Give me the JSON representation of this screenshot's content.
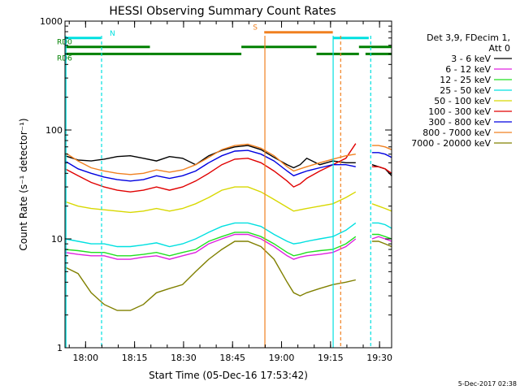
{
  "chart_data": {
    "type": "line",
    "title": "HESSI Observing Summary Count Rates",
    "xlabel": "Start Time (05-Dec-16 17:53:42)",
    "ylabel": "Count Rate (s⁻¹ detector⁻¹)",
    "yscale": "log",
    "ylim": [
      1,
      1000
    ],
    "xlim_minutes_after_start": [
      0,
      100
    ],
    "x_start_time": "17:53:42",
    "x_tick_labels": [
      "18:00",
      "18:15",
      "18:30",
      "18:45",
      "19:00",
      "19:15",
      "19:30"
    ],
    "y_tick_labels": [
      "1",
      "10",
      "100",
      "1000"
    ],
    "footer": "5-Dec-2017 02:38",
    "legend": {
      "placement": "right",
      "header": [
        "Det 3,9, FDecim 1,",
        "Att 0"
      ],
      "entries": [
        {
          "label": "3 - 6 keV",
          "color": "#000000"
        },
        {
          "label": "6 - 12 keV",
          "color": "#e020e0"
        },
        {
          "label": "12 - 25 keV",
          "color": "#20e020"
        },
        {
          "label": "25 - 50 keV",
          "color": "#00e0e0"
        },
        {
          "label": "50 - 100 keV",
          "color": "#d8d800"
        },
        {
          "label": "100 - 300 keV",
          "color": "#e00000"
        },
        {
          "label": "300 - 800 keV",
          "color": "#0000e0"
        },
        {
          "label": "800 - 7000 keV",
          "color": "#f08020"
        },
        {
          "label": "7000 - 20000 keV",
          "color": "#808000"
        }
      ]
    },
    "series": [
      {
        "name": "3 - 6 keV",
        "color": "#000000",
        "segments": [
          {
            "x": [
              0,
              4,
              8,
              12,
              16,
              20,
              24,
              28,
              32,
              36,
              40,
              44,
              48,
              52,
              56,
              60,
              64,
              68,
              70,
              72,
              74,
              78,
              82,
              86,
              89
            ],
            "y": [
              58,
              53,
              52,
              54,
              57,
              58,
              55,
              52,
              57,
              55,
              48,
              58,
              65,
              70,
              72,
              66,
              56,
              48,
              45,
              48,
              55,
              48,
              52,
              50,
              50
            ]
          },
          {
            "x": [
              94,
              96,
              98,
              100
            ],
            "y": [
              48,
              46,
              44,
              38
            ]
          }
        ]
      },
      {
        "name": "6 - 12 keV",
        "color": "#e020e0",
        "segments": [
          {
            "x": [
              0,
              4,
              8,
              12,
              16,
              20,
              24,
              28,
              32,
              36,
              40,
              44,
              48,
              52,
              56,
              60,
              64,
              68,
              70,
              72,
              74,
              78,
              82,
              86,
              89
            ],
            "y": [
              7.5,
              7.2,
              7,
              7,
              6.5,
              6.5,
              6.8,
              7,
              6.5,
              7,
              7.5,
              9,
              10,
              11,
              11,
              10,
              8.5,
              7,
              6.5,
              6.8,
              7,
              7.2,
              7.5,
              8.5,
              10
            ]
          },
          {
            "x": [
              94,
              96,
              98,
              100
            ],
            "y": [
              10,
              10.5,
              10,
              9.5
            ]
          }
        ]
      },
      {
        "name": "12 - 25 keV",
        "color": "#20e020",
        "segments": [
          {
            "x": [
              0,
              4,
              8,
              12,
              16,
              20,
              24,
              28,
              32,
              36,
              40,
              44,
              48,
              52,
              56,
              60,
              64,
              68,
              70,
              72,
              74,
              78,
              82,
              86,
              89
            ],
            "y": [
              8,
              7.8,
              7.5,
              7.5,
              7,
              7,
              7.2,
              7.5,
              7,
              7.5,
              8,
              9.5,
              10.5,
              11.5,
              11.5,
              10.5,
              9,
              7.5,
              7,
              7.2,
              7.5,
              7.8,
              8,
              9,
              10.5
            ]
          },
          {
            "x": [
              94,
              96,
              98,
              100
            ],
            "y": [
              11,
              11,
              10.5,
              10
            ]
          }
        ]
      },
      {
        "name": "25 - 50 keV",
        "color": "#00e0e0",
        "segments": [
          {
            "x": [
              0,
              4,
              8,
              12,
              16,
              20,
              24,
              28,
              32,
              36,
              40,
              44,
              48,
              52,
              56,
              60,
              64,
              68,
              70,
              72,
              74,
              78,
              82,
              86,
              89
            ],
            "y": [
              10,
              9.5,
              9,
              9,
              8.5,
              8.5,
              8.8,
              9.2,
              8.5,
              9,
              10,
              11.5,
              13,
              14,
              14,
              13,
              11,
              9.5,
              9,
              9.2,
              9.5,
              10,
              10.5,
              12,
              14
            ]
          },
          {
            "x": [
              94,
              96,
              98,
              100
            ],
            "y": [
              14,
              14,
              13.5,
              12.5
            ]
          }
        ]
      },
      {
        "name": "50 - 100 keV",
        "color": "#d8d800",
        "segments": [
          {
            "x": [
              0,
              4,
              8,
              12,
              16,
              20,
              24,
              28,
              32,
              36,
              40,
              44,
              48,
              52,
              56,
              60,
              64,
              68,
              70,
              72,
              74,
              78,
              82,
              86,
              89
            ],
            "y": [
              22,
              20,
              19,
              18.5,
              18,
              17.5,
              18,
              19,
              18,
              19,
              21,
              24,
              28,
              30,
              30,
              27,
              23,
              19.5,
              18,
              18.5,
              19,
              20,
              21,
              24,
              27
            ]
          },
          {
            "x": [
              94,
              96,
              98,
              100
            ],
            "y": [
              21,
              20,
              19,
              18
            ]
          }
        ]
      },
      {
        "name": "100 - 300 keV",
        "color": "#e00000",
        "segments": [
          {
            "x": [
              0,
              4,
              8,
              12,
              16,
              20,
              24,
              28,
              32,
              36,
              40,
              44,
              48,
              52,
              56,
              60,
              64,
              68,
              70,
              72,
              74,
              78,
              82,
              86,
              89
            ],
            "y": [
              44,
              38,
              33,
              30,
              28,
              27,
              28,
              30,
              28,
              30,
              34,
              40,
              48,
              54,
              55,
              50,
              42,
              34,
              30,
              32,
              36,
              42,
              48,
              55,
              75
            ]
          },
          {
            "x": [
              94,
              96,
              98,
              100
            ],
            "y": [
              46,
              46,
              44,
              40
            ]
          }
        ]
      },
      {
        "name": "300 - 800 keV",
        "color": "#0000e0",
        "segments": [
          {
            "x": [
              0,
              4,
              8,
              12,
              16,
              20,
              24,
              28,
              32,
              36,
              40,
              44,
              48,
              52,
              56,
              60,
              64,
              68,
              70,
              72,
              74,
              78,
              82,
              86,
              89
            ],
            "y": [
              52,
              44,
              40,
              37,
              35,
              34,
              35,
              38,
              36,
              38,
              42,
              50,
              58,
              64,
              65,
              60,
              52,
              42,
              38,
              40,
              42,
              45,
              48,
              48,
              46
            ]
          },
          {
            "x": [
              94,
              96,
              98,
              100
            ],
            "y": [
              62,
              62,
              60,
              56
            ]
          }
        ]
      },
      {
        "name": "800 - 7000 keV",
        "color": "#f08020",
        "segments": [
          {
            "x": [
              0,
              4,
              8,
              12,
              16,
              20,
              24,
              28,
              32,
              36,
              40,
              44,
              48,
              52,
              56,
              60,
              64,
              68,
              70,
              72,
              74,
              78,
              82,
              86,
              89
            ],
            "y": [
              62,
              52,
              45,
              42,
              40,
              39,
              40,
              43,
              41,
              43,
              48,
              56,
              66,
              72,
              74,
              68,
              58,
              46,
              42,
              44,
              46,
              50,
              54,
              58,
              60
            ]
          },
          {
            "x": [
              94,
              96,
              98,
              100
            ],
            "y": [
              72,
              72,
              70,
              66
            ]
          }
        ]
      },
      {
        "name": "7000 - 20000 keV",
        "color": "#808000",
        "segments": [
          {
            "x": [
              0,
              4,
              8,
              12,
              16,
              20,
              24,
              28,
              32,
              36,
              40,
              44,
              48,
              52,
              56,
              60,
              64,
              68,
              70,
              72,
              74,
              78,
              82,
              86,
              89
            ],
            "y": [
              5.5,
              4.8,
              3.2,
              2.5,
              2.2,
              2.2,
              2.5,
              3.2,
              3.5,
              3.8,
              5,
              6.5,
              8,
              9.5,
              9.5,
              8.5,
              6.5,
              4,
              3.2,
              3,
              3.2,
              3.5,
              3.8,
              4,
              4.2
            ]
          },
          {
            "x": [
              94,
              96,
              98,
              100
            ],
            "y": [
              9.5,
              9.5,
              9,
              8.5
            ]
          }
        ]
      }
    ],
    "bars": [
      {
        "label": "RD0",
        "color": "#008000",
        "y": 580,
        "intervals": [
          [
            0,
            26
          ],
          [
            54,
            77
          ],
          [
            90,
            100
          ]
        ]
      },
      {
        "label": "RD6",
        "color": "#008000",
        "y": 500,
        "intervals": [
          [
            0,
            26
          ],
          [
            26,
            54
          ],
          [
            77,
            90
          ],
          [
            92,
            100
          ]
        ]
      },
      {
        "label": "N",
        "color": "#00e0e0",
        "y": 700,
        "intervals": [
          [
            0,
            11
          ],
          [
            82,
            93
          ]
        ]
      },
      {
        "label": "S",
        "color": "#f08020",
        "y": 790,
        "intervals": [
          [
            61,
            82
          ]
        ]
      }
    ],
    "vlines": [
      {
        "x": 0.3,
        "color": "#00e0e0",
        "style": "solid"
      },
      {
        "x": 11.2,
        "color": "#00e0e0",
        "style": "dashed"
      },
      {
        "x": 61.2,
        "color": "#f08020",
        "style": "solid"
      },
      {
        "x": 82.1,
        "color": "#00e0e0",
        "style": "solid"
      },
      {
        "x": 84.4,
        "color": "#f08020",
        "style": "dashed"
      },
      {
        "x": 93.6,
        "color": "#00e0e0",
        "style": "dashed"
      }
    ]
  }
}
